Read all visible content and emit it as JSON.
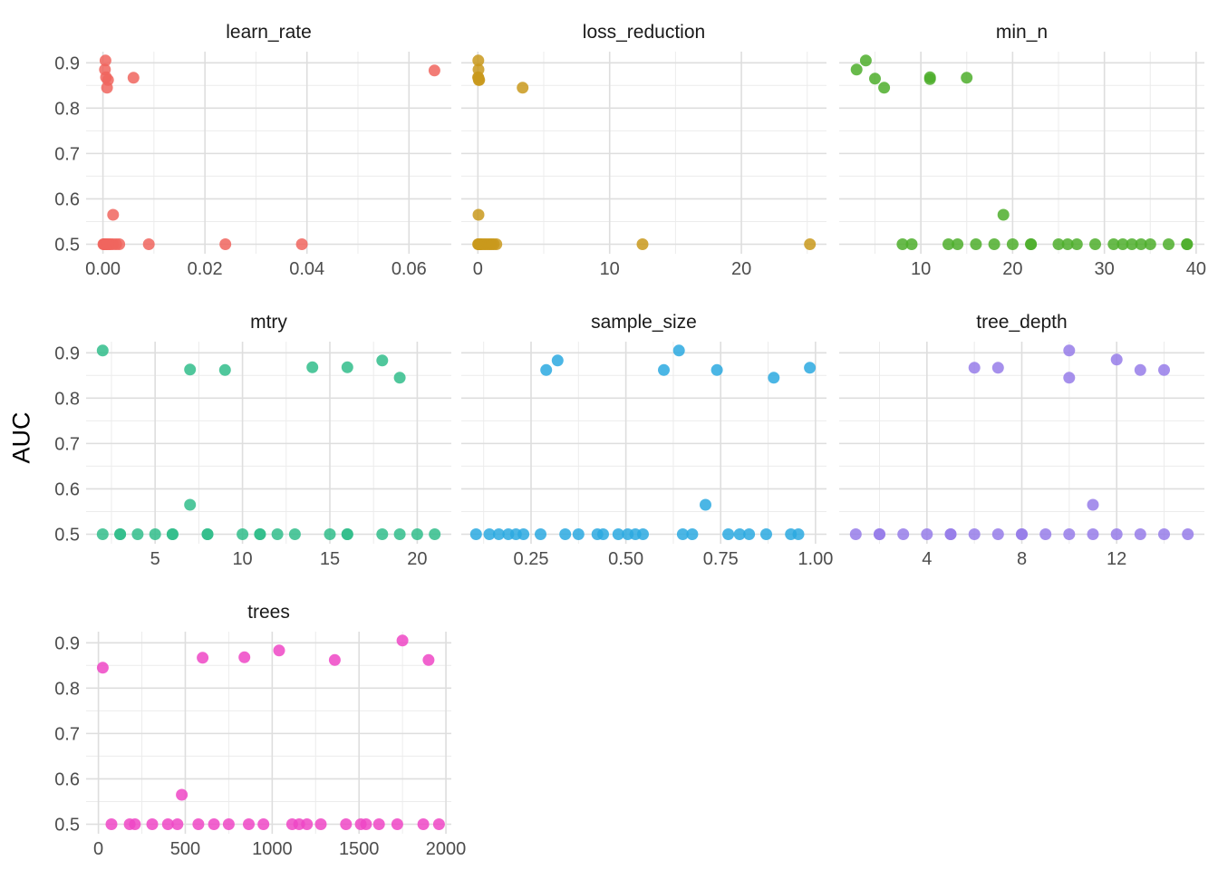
{
  "chart_data": {
    "type": "scatter",
    "ylabel": "AUC",
    "grid": {
      "background": "#ffffff",
      "major_color": "#dedede",
      "minor_color": "#ececec"
    },
    "text_colors": {
      "tick_label": "#4d4d4d",
      "facet_title": "#1a1a1a",
      "axis_title": "#000000"
    },
    "point_style": {
      "radius": 6.5,
      "opacity": 0.85
    },
    "y_axis": {
      "domain": [
        0.479,
        0.9245
      ],
      "major_ticks": [
        0.9,
        0.8,
        0.7,
        0.6,
        0.5
      ],
      "tick_labels": [
        "0.9",
        "0.8",
        "0.7",
        "0.6",
        "0.5"
      ],
      "minor_ticks": [
        0.85,
        0.75,
        0.65,
        0.55
      ]
    },
    "layout_rows": [
      [
        "learn_rate",
        "loss_reduction",
        "min_n"
      ],
      [
        "mtry",
        "sample_size",
        "tree_depth"
      ],
      [
        "trees"
      ]
    ],
    "facets": {
      "learn_rate": {
        "label": "learn_rate",
        "color": "#F0655E",
        "x_domain": [
          -0.0033,
          0.0683
        ],
        "x_ticks": [
          [
            0,
            "0.00"
          ],
          [
            0.02,
            "0.02"
          ],
          [
            0.04,
            "0.04"
          ],
          [
            0.06,
            "0.06"
          ]
        ],
        "x_minor": [
          0.01,
          0.03,
          0.05
        ],
        "points": [
          [
            0.0005,
            0.905
          ],
          [
            0.0004,
            0.885
          ],
          [
            0.0006,
            0.868
          ],
          [
            0.001,
            0.862
          ],
          [
            0.0008,
            0.845
          ],
          [
            0.006,
            0.867
          ],
          [
            0.065,
            0.883
          ],
          [
            0.002,
            0.565
          ],
          [
            0.0001,
            0.5
          ],
          [
            0.0002,
            0.5
          ],
          [
            0.0003,
            0.5
          ],
          [
            0.0005,
            0.5
          ],
          [
            0.0007,
            0.5
          ],
          [
            0.0009,
            0.5
          ],
          [
            0.0012,
            0.5
          ],
          [
            0.0015,
            0.5
          ],
          [
            0.002,
            0.5
          ],
          [
            0.0026,
            0.5
          ],
          [
            0.0032,
            0.5
          ],
          [
            0.009,
            0.5
          ],
          [
            0.024,
            0.5
          ],
          [
            0.039,
            0.5
          ]
        ]
      },
      "loss_reduction": {
        "label": "loss_reduction",
        "color": "#C9991C",
        "x_domain": [
          -1.26,
          26.46
        ],
        "x_ticks": [
          [
            0,
            "0"
          ],
          [
            10,
            "10"
          ],
          [
            20,
            "20"
          ]
        ],
        "x_minor": [
          5,
          15,
          25
        ],
        "points": [
          [
            0.03,
            0.905
          ],
          [
            0.05,
            0.885
          ],
          [
            0.02,
            0.868
          ],
          [
            0.04,
            0.867
          ],
          [
            0.07,
            0.862
          ],
          [
            0.1,
            0.862
          ],
          [
            3.4,
            0.845
          ],
          [
            0.05,
            0.565
          ],
          [
            0.02,
            0.5
          ],
          [
            0.05,
            0.5
          ],
          [
            0.09,
            0.5
          ],
          [
            0.14,
            0.5
          ],
          [
            0.2,
            0.5
          ],
          [
            0.3,
            0.5
          ],
          [
            0.45,
            0.5
          ],
          [
            0.6,
            0.5
          ],
          [
            0.75,
            0.5
          ],
          [
            0.9,
            0.5
          ],
          [
            1.05,
            0.5
          ],
          [
            1.2,
            0.5
          ],
          [
            1.4,
            0.5
          ],
          [
            12.5,
            0.5
          ],
          [
            25.2,
            0.5
          ]
        ]
      },
      "min_n": {
        "label": "min_n",
        "color": "#4EAE2B",
        "x_domain": [
          1.1,
          40.9
        ],
        "x_ticks": [
          [
            10,
            "10"
          ],
          [
            20,
            "20"
          ],
          [
            30,
            "30"
          ],
          [
            40,
            "40"
          ]
        ],
        "x_minor": [
          5,
          15,
          25,
          35
        ],
        "points": [
          [
            3,
            0.885
          ],
          [
            4,
            0.905
          ],
          [
            5,
            0.865
          ],
          [
            6,
            0.845
          ],
          [
            11,
            0.868
          ],
          [
            11,
            0.864
          ],
          [
            15,
            0.867
          ],
          [
            19,
            0.565
          ],
          [
            8,
            0.5
          ],
          [
            9,
            0.5
          ],
          [
            13,
            0.5
          ],
          [
            14,
            0.5
          ],
          [
            16,
            0.5
          ],
          [
            18,
            0.5
          ],
          [
            20,
            0.5
          ],
          [
            22,
            0.5
          ],
          [
            22,
            0.5
          ],
          [
            25,
            0.5
          ],
          [
            26,
            0.5
          ],
          [
            27,
            0.5
          ],
          [
            29,
            0.5
          ],
          [
            31,
            0.5
          ],
          [
            32,
            0.5
          ],
          [
            33,
            0.5
          ],
          [
            34,
            0.5
          ],
          [
            35,
            0.5
          ],
          [
            37,
            0.5
          ],
          [
            39,
            0.5
          ],
          [
            39,
            0.5
          ]
        ]
      },
      "mtry": {
        "label": "mtry",
        "color": "#31BD8B",
        "x_domain": [
          1.05,
          21.95
        ],
        "x_ticks": [
          [
            5,
            "5"
          ],
          [
            10,
            "10"
          ],
          [
            15,
            "15"
          ],
          [
            20,
            "20"
          ]
        ],
        "x_minor": [
          2.5,
          7.5,
          12.5,
          17.5
        ],
        "points": [
          [
            2,
            0.905
          ],
          [
            7,
            0.863
          ],
          [
            9,
            0.862
          ],
          [
            14,
            0.868
          ],
          [
            16,
            0.868
          ],
          [
            18,
            0.883
          ],
          [
            19,
            0.845
          ],
          [
            7,
            0.565
          ],
          [
            2,
            0.5
          ],
          [
            3,
            0.5
          ],
          [
            3,
            0.5
          ],
          [
            4,
            0.5
          ],
          [
            5,
            0.5
          ],
          [
            6,
            0.5
          ],
          [
            6,
            0.5
          ],
          [
            8,
            0.5
          ],
          [
            8,
            0.5
          ],
          [
            10,
            0.5
          ],
          [
            11,
            0.5
          ],
          [
            11,
            0.5
          ],
          [
            12,
            0.5
          ],
          [
            13,
            0.5
          ],
          [
            15,
            0.5
          ],
          [
            16,
            0.5
          ],
          [
            16,
            0.5
          ],
          [
            18,
            0.5
          ],
          [
            19,
            0.5
          ],
          [
            20,
            0.5
          ],
          [
            21,
            0.5
          ]
        ]
      },
      "sample_size": {
        "label": "sample_size",
        "color": "#2BA9E1",
        "x_domain": [
          0.066,
          1.029
        ],
        "x_ticks": [
          [
            0.25,
            "0.25"
          ],
          [
            0.5,
            "0.50"
          ],
          [
            0.75,
            "0.75"
          ],
          [
            1.0,
            "1.00"
          ]
        ],
        "x_minor": [
          0.125,
          0.375,
          0.625,
          0.875
        ],
        "points": [
          [
            0.29,
            0.862
          ],
          [
            0.32,
            0.883
          ],
          [
            0.6,
            0.862
          ],
          [
            0.64,
            0.905
          ],
          [
            0.74,
            0.862
          ],
          [
            0.89,
            0.845
          ],
          [
            0.985,
            0.867
          ],
          [
            0.71,
            0.565
          ],
          [
            0.105,
            0.5
          ],
          [
            0.14,
            0.5
          ],
          [
            0.165,
            0.5
          ],
          [
            0.19,
            0.5
          ],
          [
            0.21,
            0.5
          ],
          [
            0.23,
            0.5
          ],
          [
            0.275,
            0.5
          ],
          [
            0.34,
            0.5
          ],
          [
            0.375,
            0.5
          ],
          [
            0.425,
            0.5
          ],
          [
            0.44,
            0.5
          ],
          [
            0.48,
            0.5
          ],
          [
            0.505,
            0.5
          ],
          [
            0.525,
            0.5
          ],
          [
            0.545,
            0.5
          ],
          [
            0.65,
            0.5
          ],
          [
            0.675,
            0.5
          ],
          [
            0.77,
            0.5
          ],
          [
            0.8,
            0.5
          ],
          [
            0.825,
            0.5
          ],
          [
            0.87,
            0.5
          ],
          [
            0.935,
            0.5
          ],
          [
            0.955,
            0.5
          ]
        ]
      },
      "tree_depth": {
        "label": "tree_depth",
        "color": "#967DE9",
        "x_domain": [
          0.3,
          15.7
        ],
        "x_ticks": [
          [
            4,
            "4"
          ],
          [
            8,
            "8"
          ],
          [
            12,
            "12"
          ]
        ],
        "x_minor": [
          2,
          6,
          10,
          14
        ],
        "points": [
          [
            6,
            0.867
          ],
          [
            7,
            0.867
          ],
          [
            10,
            0.905
          ],
          [
            10,
            0.845
          ],
          [
            12,
            0.885
          ],
          [
            13,
            0.862
          ],
          [
            14,
            0.862
          ],
          [
            11,
            0.565
          ],
          [
            1,
            0.5
          ],
          [
            2,
            0.5
          ],
          [
            2,
            0.5
          ],
          [
            3,
            0.5
          ],
          [
            4,
            0.5
          ],
          [
            5,
            0.5
          ],
          [
            5,
            0.5
          ],
          [
            6,
            0.5
          ],
          [
            7,
            0.5
          ],
          [
            8,
            0.5
          ],
          [
            8,
            0.5
          ],
          [
            9,
            0.5
          ],
          [
            10,
            0.5
          ],
          [
            11,
            0.5
          ],
          [
            12,
            0.5
          ],
          [
            13,
            0.5
          ],
          [
            14,
            0.5
          ],
          [
            15,
            0.5
          ]
        ]
      },
      "trees": {
        "label": "trees",
        "color": "#EE46C6",
        "x_domain": [
          -71,
          2031
        ],
        "x_ticks": [
          [
            0,
            "0"
          ],
          [
            500,
            "500"
          ],
          [
            1000,
            "1000"
          ],
          [
            1500,
            "1500"
          ],
          [
            2000,
            "2000"
          ]
        ],
        "x_minor": [
          250,
          750,
          1250,
          1750
        ],
        "points": [
          [
            25,
            0.845
          ],
          [
            600,
            0.867
          ],
          [
            840,
            0.868
          ],
          [
            1040,
            0.883
          ],
          [
            1360,
            0.862
          ],
          [
            1750,
            0.905
          ],
          [
            1900,
            0.862
          ],
          [
            480,
            0.565
          ],
          [
            75,
            0.5
          ],
          [
            180,
            0.5
          ],
          [
            210,
            0.5
          ],
          [
            310,
            0.5
          ],
          [
            400,
            0.5
          ],
          [
            455,
            0.5
          ],
          [
            575,
            0.5
          ],
          [
            665,
            0.5
          ],
          [
            750,
            0.5
          ],
          [
            865,
            0.5
          ],
          [
            950,
            0.5
          ],
          [
            1115,
            0.5
          ],
          [
            1155,
            0.5
          ],
          [
            1200,
            0.5
          ],
          [
            1280,
            0.5
          ],
          [
            1425,
            0.5
          ],
          [
            1510,
            0.5
          ],
          [
            1540,
            0.5
          ],
          [
            1615,
            0.5
          ],
          [
            1720,
            0.5
          ],
          [
            1870,
            0.5
          ],
          [
            1960,
            0.5
          ]
        ]
      }
    }
  }
}
